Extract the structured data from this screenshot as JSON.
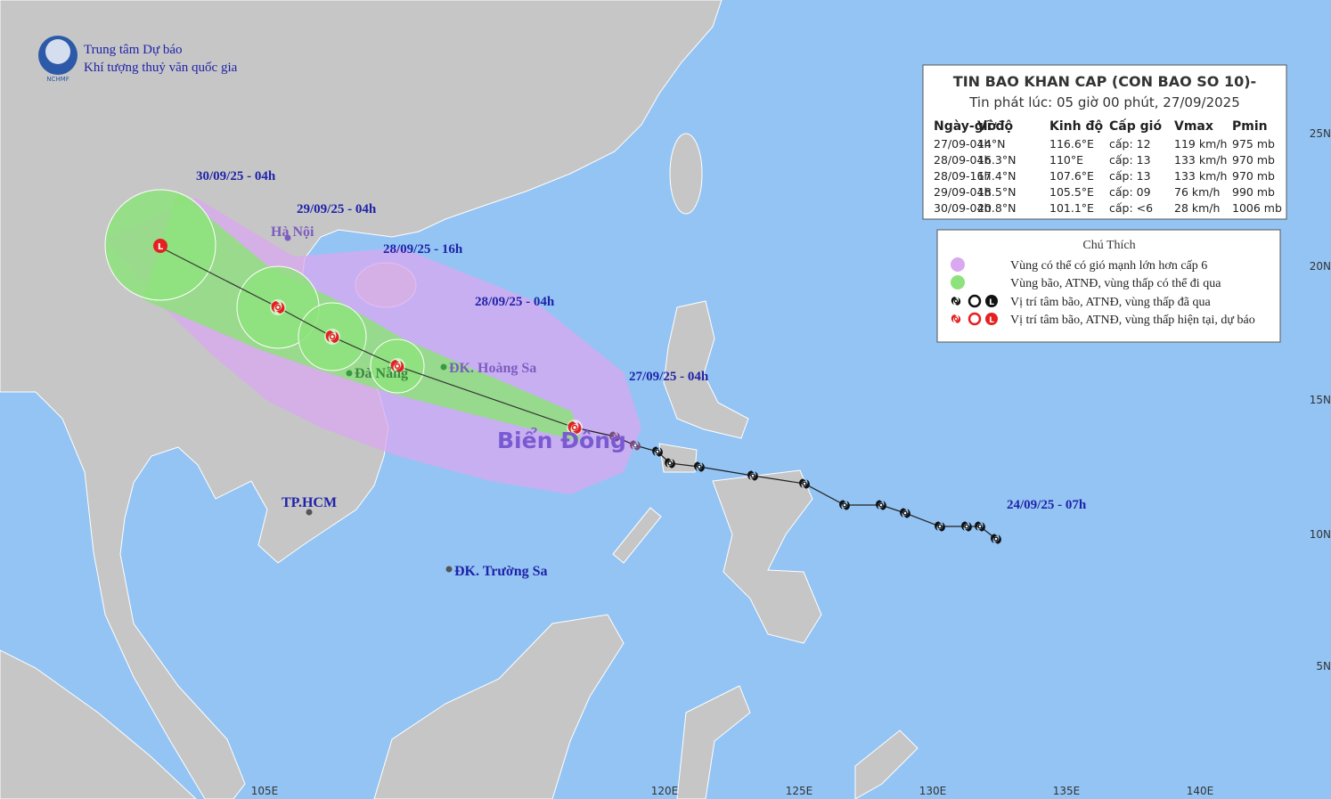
{
  "header": {
    "org_line1": "Trung tâm Dự báo",
    "org_line2": "Khí tượng thuỷ văn quốc gia",
    "logo": "NCHMF"
  },
  "info": {
    "title": "TIN BAO KHAN CAP (CON BAO SO 10)-",
    "issued": "Tin phát lúc: 05 giờ 00 phút, 27/09/2025",
    "columns": [
      "Ngày-giờ",
      "Vĩ độ",
      "Kinh độ",
      "Cấp gió",
      "Vmax",
      "Pmin"
    ],
    "rows": [
      [
        "27/09-04h",
        "14°N",
        "116.6°E",
        "cấp: 12",
        "119 km/h",
        "975 mb"
      ],
      [
        "28/09-04h",
        "16.3°N",
        "110°E",
        "cấp: 13",
        "133 km/h",
        "970 mb"
      ],
      [
        "28/09-16h",
        "17.4°N",
        "107.6°E",
        "cấp: 13",
        "133 km/h",
        "970 mb"
      ],
      [
        "29/09-04h",
        "18.5°N",
        "105.5°E",
        "cấp: 09",
        "76 km/h",
        "990 mb"
      ],
      [
        "30/09-04h",
        "20.8°N",
        "101.1°E",
        "cấp: <6",
        "28 km/h",
        "1006 mb"
      ]
    ]
  },
  "legend": {
    "title": "Chú Thích",
    "items": [
      "Vùng có thể có gió mạnh lớn hơn cấp 6",
      "Vùng bão, ATNĐ, vùng thấp có thể đi qua",
      "Vị trí tâm bão, ATNĐ, vùng thấp đã qua",
      "Vị trí tâm bão, ATNĐ, vùng thấp hiện tại, dự báo"
    ]
  },
  "map_labels": {
    "times": [
      "30/09/25 - 04h",
      "29/09/25 - 04h",
      "28/09/25 - 16h",
      "28/09/25 - 04h",
      "27/09/25 - 04h",
      "24/09/25 - 07h"
    ],
    "places": [
      "Hà Nội",
      "Đà Nẵng",
      "ĐK. Hoàng Sa",
      "TP.HCM",
      "ĐK. Trường Sa"
    ],
    "sea": "Biển Đông"
  },
  "axes": {
    "lon": [
      "105E",
      "120E",
      "125E",
      "130E",
      "135E",
      "140E"
    ],
    "lat": [
      "25N",
      "20N",
      "15N",
      "10N",
      "5N"
    ]
  }
}
